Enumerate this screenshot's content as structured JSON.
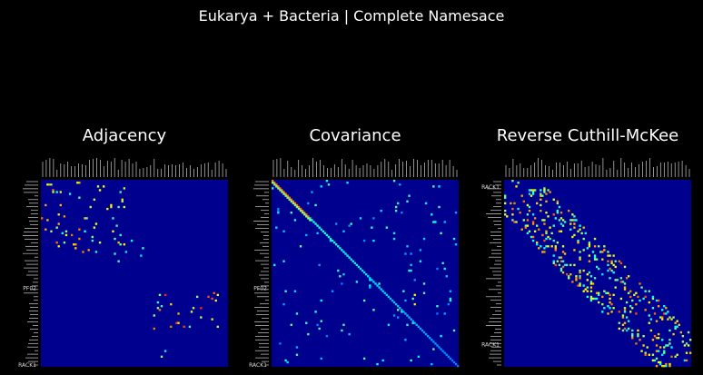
{
  "suptitle": "Eukarya + Bacteria | Complete Namesace",
  "colors": {
    "background": "#000000",
    "colormap": "jet",
    "matrix_background": "#00008f",
    "text": "#ffffff"
  },
  "chart_data": [
    {
      "type": "heatmap",
      "title": "Adjacency",
      "colormap": "jet",
      "size": 100,
      "grid": false,
      "visible_y_tick_labels": [
        "PF02",
        "RACK1"
      ],
      "pattern": "clustered",
      "clusters": [
        {
          "rows": [
            0,
            40
          ],
          "cols": [
            0,
            45
          ],
          "density": 0.035,
          "level": 0.65
        },
        {
          "rows": [
            22,
            45
          ],
          "cols": [
            40,
            55
          ],
          "density": 0.02,
          "level": 0.5
        },
        {
          "rows": [
            60,
            80
          ],
          "cols": [
            60,
            95
          ],
          "density": 0.04,
          "level": 0.7
        },
        {
          "rows": [
            80,
            95
          ],
          "cols": [
            60,
            75
          ],
          "density": 0.015,
          "level": 0.45
        }
      ]
    },
    {
      "type": "heatmap",
      "title": "Covariance",
      "colormap": "jet",
      "size": 100,
      "grid": false,
      "visible_y_tick_labels": [
        "PF02",
        "RACK1"
      ],
      "pattern": "diagonal",
      "clusters": [
        {
          "rows": [
            0,
            100
          ],
          "cols": [
            0,
            100
          ],
          "density": 0.012,
          "level": 0.4
        },
        {
          "rows": [
            60,
            78
          ],
          "cols": [
            60,
            80
          ],
          "density": 0.03,
          "level": 0.55
        }
      ]
    },
    {
      "type": "heatmap",
      "title": "Reverse Cuthill-McKee",
      "colormap": "jet",
      "size": 100,
      "grid": false,
      "visible_y_tick_labels": [
        "RACK1"
      ],
      "pattern": "banded",
      "band_width": 18
    }
  ]
}
